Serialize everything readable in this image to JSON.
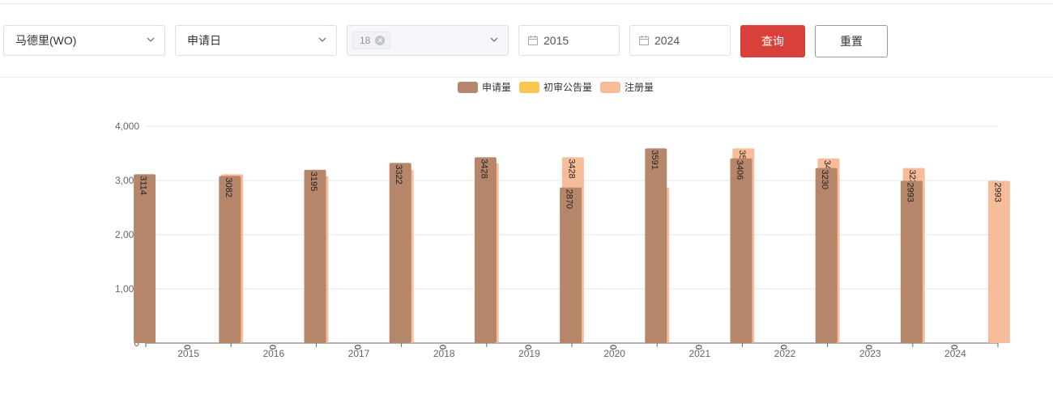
{
  "filters": {
    "region": "马德里(WO)",
    "date_type": "申请日",
    "class_tag": "18",
    "start_year": "2015",
    "end_year": "2024",
    "query_label": "查询",
    "reset_label": "重置"
  },
  "chart_data": {
    "type": "bar",
    "categories": [
      "2015",
      "2016",
      "2017",
      "2018",
      "2019",
      "2020",
      "2021",
      "2022",
      "2023",
      "2024"
    ],
    "series": [
      {
        "name": "申请量",
        "color": "#b5866a",
        "values": [
          3114,
          3082,
          3195,
          3322,
          3428,
          2870,
          3591,
          3406,
          3230,
          2993
        ]
      },
      {
        "name": "初审公告量",
        "color": "#f9c74f",
        "values": [
          0,
          0,
          0,
          0,
          0,
          0,
          0,
          0,
          0,
          0
        ]
      },
      {
        "name": "注册量",
        "color": "#f7bc9a",
        "values": [
          3114,
          3082,
          3195,
          3322,
          3428,
          2870,
          3591,
          3406,
          3230,
          2993
        ]
      }
    ],
    "ylim": [
      0,
      4000
    ],
    "yticks": [
      0,
      1000,
      2000,
      3000,
      4000
    ],
    "ytick_labels": [
      "0",
      "1,000",
      "2,000",
      "3,000",
      "4,000"
    ],
    "grid": true,
    "legend_position": "top-center",
    "data_labels": "rotated-inside-top"
  }
}
